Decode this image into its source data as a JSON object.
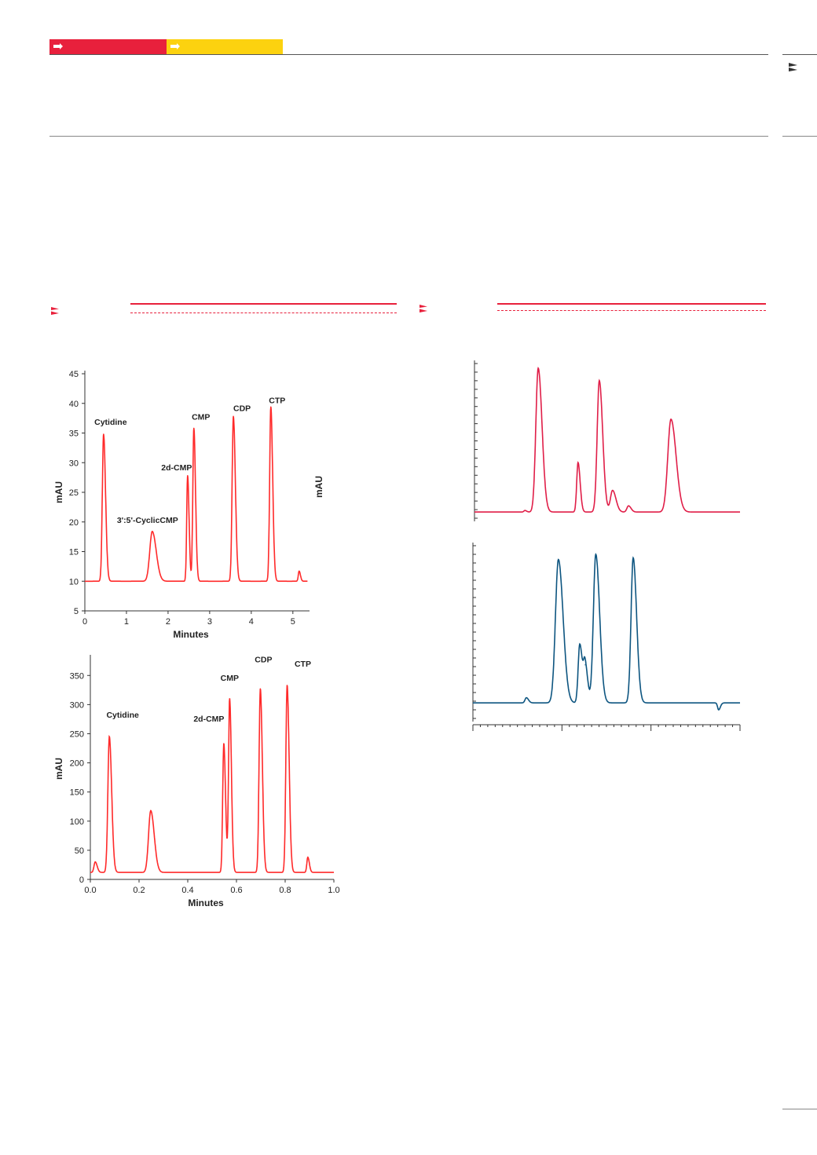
{
  "colors": {
    "accent_red": "#e8203c",
    "accent_yellow": "#fcd20f",
    "trace_red": "#ff2a2a",
    "trace_crimson": "#e01e48",
    "trace_blue": "#0d5580"
  },
  "icons": {
    "tab": "arrow-icon",
    "side": "double-chevron-icon",
    "section": "double-chevron-icon"
  },
  "chart_data": [
    {
      "type": "line",
      "title": "",
      "xlabel": "Minutes",
      "ylabel": "mAU",
      "xlim": [
        0,
        5.4
      ],
      "ylim": [
        5,
        45
      ],
      "xticks": [
        "0",
        "1",
        "2",
        "3",
        "4",
        "5"
      ],
      "yticks": [
        "5",
        "10",
        "15",
        "20",
        "25",
        "30",
        "35",
        "40",
        "45"
      ],
      "grid": false,
      "baseline": 10,
      "peaks": [
        {
          "name": "Cytidine",
          "x": 0.45,
          "y": 34.8
        },
        {
          "name": "3':5'-CyclicCMP",
          "x": 1.62,
          "y": 18.4
        },
        {
          "name": "2d-CMP",
          "x": 2.47,
          "y": 27.8
        },
        {
          "name": "CMP",
          "x": 2.62,
          "y": 35.8
        },
        {
          "name": "CDP",
          "x": 3.57,
          "y": 37.8
        },
        {
          "name": "CTP",
          "x": 4.47,
          "y": 39.4
        },
        {
          "name": "",
          "x": 5.15,
          "y": 11.7
        }
      ]
    },
    {
      "type": "line",
      "title": "",
      "xlabel": "Minutes",
      "ylabel": "mAU",
      "xlim": [
        0,
        1.0
      ],
      "ylim": [
        0,
        380
      ],
      "xticks": [
        "0.0",
        "0.2",
        "0.4",
        "0.6",
        "0.8",
        "1.0"
      ],
      "yticks": [
        "0",
        "50",
        "100",
        "150",
        "200",
        "250",
        "300",
        "350"
      ],
      "grid": false,
      "baseline": 12,
      "peaks": [
        {
          "name": "",
          "x": 0.02,
          "y": 30
        },
        {
          "name": "Cytidine",
          "x": 0.078,
          "y": 245
        },
        {
          "name": "",
          "x": 0.248,
          "y": 118
        },
        {
          "name": "2d-CMP",
          "x": 0.548,
          "y": 233
        },
        {
          "name": "CMP",
          "x": 0.572,
          "y": 310
        },
        {
          "name": "CDP",
          "x": 0.698,
          "y": 327
        },
        {
          "name": "CTP",
          "x": 0.808,
          "y": 333
        },
        {
          "name": "",
          "x": 0.893,
          "y": 38
        }
      ]
    },
    {
      "type": "line",
      "title": "",
      "xlabel": "",
      "ylabel": "mAU",
      "xlim": [
        0,
        1
      ],
      "ylim": [
        0,
        1
      ],
      "grid": false,
      "baseline": 0.04,
      "peaks": [
        {
          "name": "",
          "x": 0.19,
          "y": 0.05
        },
        {
          "name": "",
          "x": 0.24,
          "y": 0.97
        },
        {
          "name": "",
          "x": 0.39,
          "y": 0.36
        },
        {
          "name": "",
          "x": 0.47,
          "y": 0.89
        },
        {
          "name": "",
          "x": 0.52,
          "y": 0.18
        },
        {
          "name": "",
          "x": 0.58,
          "y": 0.08
        },
        {
          "name": "",
          "x": 0.74,
          "y": 0.64
        }
      ]
    },
    {
      "type": "line",
      "title": "",
      "xlabel": "",
      "ylabel": "",
      "xlim": [
        0,
        1
      ],
      "ylim": [
        0,
        1
      ],
      "grid": false,
      "baseline": 0.09,
      "peaks": [
        {
          "name": "",
          "x": 0.2,
          "y": 0.12
        },
        {
          "name": "",
          "x": 0.32,
          "y": 0.92
        },
        {
          "name": "",
          "x": 0.4,
          "y": 0.43
        },
        {
          "name": "",
          "x": 0.42,
          "y": 0.31
        },
        {
          "name": "",
          "x": 0.46,
          "y": 0.95
        },
        {
          "name": "",
          "x": 0.6,
          "y": 0.93
        },
        {
          "name": "",
          "x": 0.92,
          "y": 0.05
        }
      ]
    }
  ]
}
